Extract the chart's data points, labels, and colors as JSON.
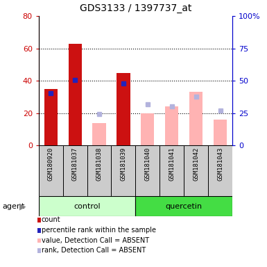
{
  "title": "GDS3133 / 1397737_at",
  "samples": [
    "GSM180920",
    "GSM181037",
    "GSM181038",
    "GSM181039",
    "GSM181040",
    "GSM181041",
    "GSM181042",
    "GSM181043"
  ],
  "red_bars": [
    35,
    63,
    null,
    45,
    null,
    null,
    null,
    null
  ],
  "blue_markers": [
    32.5,
    40.5,
    null,
    38.5,
    null,
    null,
    null,
    null
  ],
  "pink_bars": [
    null,
    null,
    14,
    null,
    20,
    24,
    33,
    16
  ],
  "lavender_markers": [
    null,
    null,
    19.5,
    null,
    25.5,
    24,
    30,
    21.5
  ],
  "ylim": [
    0,
    80
  ],
  "y2lim": [
    0,
    100
  ],
  "yticks_left": [
    0,
    20,
    40,
    60,
    80
  ],
  "yticks_right": [
    0,
    25,
    50,
    75,
    100
  ],
  "left_tick_color": "#cc0000",
  "right_tick_color": "#0000cc",
  "red_color": "#cc1111",
  "blue_color": "#2222bb",
  "pink_color": "#ffb3b3",
  "lavender_color": "#b3b3dd",
  "control_bg": "#ccffcc",
  "quercetin_bg": "#44dd44",
  "sample_bg": "#cccccc",
  "grid_lines": [
    20,
    40,
    60
  ],
  "legend_items": [
    {
      "label": "count",
      "color": "#cc1111"
    },
    {
      "label": "percentile rank within the sample",
      "color": "#2222bb"
    },
    {
      "label": "value, Detection Call = ABSENT",
      "color": "#ffb3b3"
    },
    {
      "label": "rank, Detection Call = ABSENT",
      "color": "#b3b3dd"
    }
  ],
  "fig_width": 3.85,
  "fig_height": 3.84,
  "dpi": 100
}
